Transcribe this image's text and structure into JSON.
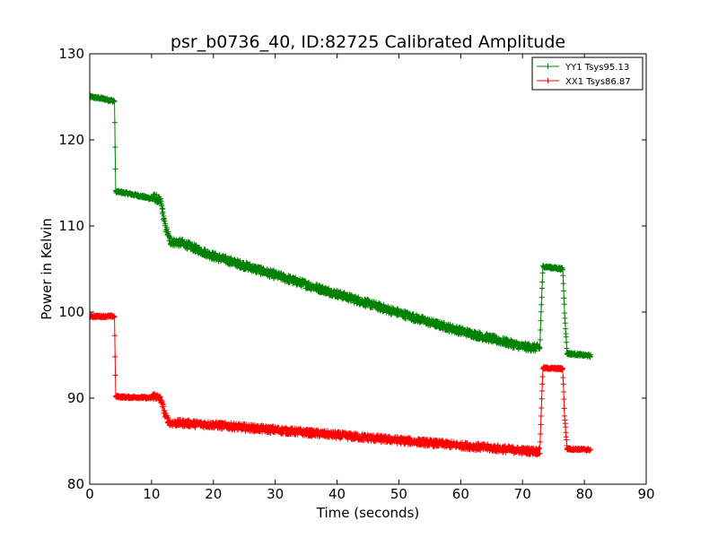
{
  "chart_data": {
    "type": "line",
    "title": "psr_b0736_40, ID:82725 Calibrated Amplitude",
    "xlabel": "Time (seconds)",
    "ylabel": "Power in Kelvin",
    "xlim": [
      0,
      90
    ],
    "ylim": [
      80,
      130
    ],
    "xticks": [
      "0",
      "10",
      "20",
      "30",
      "40",
      "50",
      "60",
      "70",
      "80",
      "90"
    ],
    "yticks": [
      "80",
      "90",
      "100",
      "110",
      "120",
      "130"
    ],
    "grid": false,
    "legend_position": "top-right",
    "marker": "+",
    "series": [
      {
        "name": "YY1 Tsys95.13",
        "color": "#008000",
        "x": [
          0,
          2,
          4.0,
          4.2,
          6,
          8,
          9.8,
          10.5,
          11.5,
          12.2,
          13,
          15,
          20,
          25,
          30,
          35,
          40,
          45,
          50,
          55,
          60,
          65,
          70,
          72.8,
          73.0,
          73.3,
          76.5,
          76.8,
          77.2,
          81
        ],
        "y": [
          125.0,
          124.8,
          124.5,
          114.0,
          113.8,
          113.5,
          113.2,
          113.3,
          112.8,
          110.0,
          108.2,
          108.0,
          106.5,
          105.4,
          104.3,
          103.2,
          102.1,
          101.0,
          99.9,
          98.8,
          97.8,
          96.9,
          96.0,
          95.8,
          100.0,
          105.3,
          105.0,
          100.0,
          95.2,
          94.9
        ],
        "noise": 0.9
      },
      {
        "name": "XX1 Tsys86.87",
        "color": "#ff0000",
        "x": [
          0,
          2,
          4.0,
          4.2,
          6,
          8,
          9.8,
          10.5,
          11.5,
          12.2,
          13,
          15,
          20,
          25,
          30,
          35,
          40,
          45,
          50,
          55,
          60,
          65,
          70,
          72.8,
          73.0,
          73.3,
          76.5,
          76.8,
          77.2,
          81
        ],
        "y": [
          99.5,
          99.5,
          99.5,
          90.2,
          90.1,
          90.1,
          90.0,
          90.3,
          89.8,
          88.0,
          87.1,
          87.1,
          86.9,
          86.6,
          86.3,
          86.0,
          85.7,
          85.4,
          85.1,
          84.8,
          84.5,
          84.2,
          83.9,
          83.8,
          88.0,
          93.5,
          93.4,
          88.0,
          84.1,
          84.0
        ],
        "noise": 0.8
      }
    ]
  }
}
